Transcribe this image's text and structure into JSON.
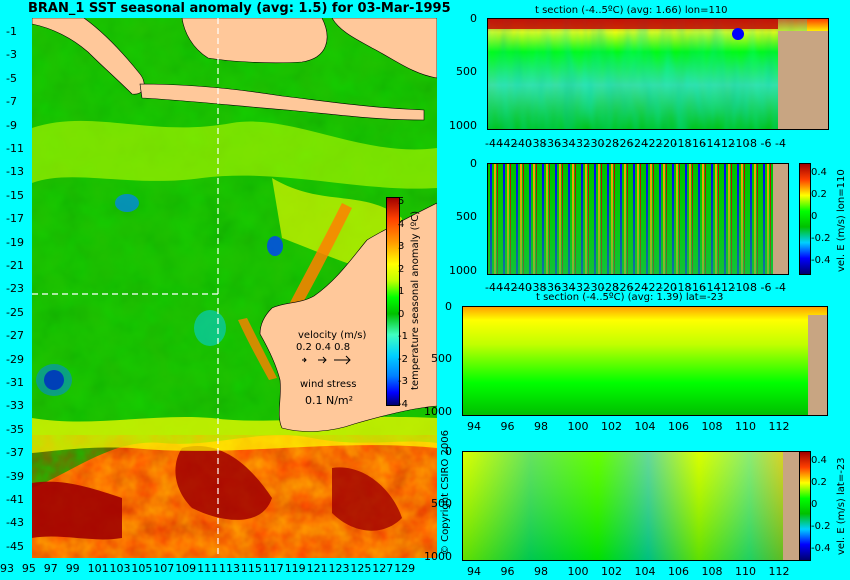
{
  "colors": {
    "background": "#00ffff",
    "land": "#ffc89a",
    "seafloor": "#c8a582",
    "scale": [
      "#00006e",
      "#0000ff",
      "#0080ff",
      "#00d0ff",
      "#40ffc0",
      "#00c000",
      "#00ff00",
      "#c0ff00",
      "#ffff00",
      "#ffa000",
      "#ff4000",
      "#a00000"
    ]
  },
  "map": {
    "title": "BRAN_1  SST seasonal anomaly  (avg: 1.5)  for 03-Mar-1995",
    "lat_labels": [
      "-1",
      "-3",
      "-5",
      "-7",
      "-9",
      "-11",
      "-13",
      "-15",
      "-17",
      "-19",
      "-21",
      "-23",
      "-25",
      "-27",
      "-29",
      "-31",
      "-33",
      "-35",
      "-37",
      "-39",
      "-41",
      "-43",
      "-45"
    ],
    "lon_labels": [
      "93",
      "95",
      "97",
      "99",
      "101",
      "103",
      "105",
      "107",
      "109",
      "111",
      "113",
      "115",
      "117",
      "119",
      "121",
      "123",
      "125",
      "127",
      "129"
    ],
    "colorbar_label": "temperature seasonal anomaly (ºC)",
    "colorbar_ticks": [
      "5",
      "4",
      "3",
      "2",
      "1",
      "0",
      "-1",
      "-2",
      "-3",
      "-4"
    ],
    "velocity_title": "velocity (m/s)",
    "velocity_values": "0.2 0.4 0.8",
    "wind_title": "wind stress",
    "wind_value": "0.1 N/m²",
    "copyright": "© Copyright CSIRO 2006"
  },
  "sections": {
    "top_lon_title": "t section (-4..5ºC)  (avg: 1.66) lon=110",
    "bottom_lat_title": "t section (-4..5ºC)  (avg: 1.39) lat=-23",
    "depth_ticks": [
      "0",
      "500",
      "1000"
    ],
    "lat_ticks": [
      "-44",
      "-42",
      "-40",
      "-38",
      "-36",
      "-34",
      "-32",
      "-30",
      "-28",
      "-26",
      "-24",
      "-22",
      "-20",
      "-18",
      "-16",
      "-14",
      "-12",
      "-10",
      "-8",
      "-6",
      "-4"
    ],
    "lon_ticks": [
      "94",
      "96",
      "98",
      "100",
      "102",
      "104",
      "106",
      "108",
      "110",
      "112"
    ],
    "vel_label_lon": "vel. E (m/s) lon=110",
    "vel_label_lat": "vel. E (m/s) lat=-23",
    "vel_ticks": [
      "0.4",
      "0.2",
      "0",
      "-0.2",
      "-0.4"
    ]
  },
  "chart_data": [
    {
      "type": "heatmap",
      "title": "BRAN_1  SST seasonal anomaly  (avg: 1.5)  for 03-Mar-1995",
      "xlim": [
        93,
        130
      ],
      "ylim": [
        -45,
        0
      ],
      "zlim": [
        -4,
        5
      ],
      "zlabel": "temperature seasonal anomaly (ºC)"
    },
    {
      "type": "heatmap",
      "title": "t section (-4..5ºC)  (avg: 1.66) lon=110",
      "xlim": [
        -45,
        -3
      ],
      "ylim": [
        1050,
        0
      ],
      "zlim": [
        -4,
        5
      ]
    },
    {
      "type": "heatmap",
      "title": "",
      "xlim": [
        -45,
        -3
      ],
      "ylim": [
        1050,
        0
      ],
      "zlim": [
        -0.4,
        0.4
      ],
      "zlabel": "vel. E (m/s) lon=110"
    },
    {
      "type": "heatmap",
      "title": "t section (-4..5ºC)  (avg: 1.39) lat=-23",
      "xlim": [
        93,
        114
      ],
      "ylim": [
        1050,
        0
      ],
      "zlim": [
        -4,
        5
      ]
    },
    {
      "type": "heatmap",
      "title": "",
      "xlim": [
        93,
        114
      ],
      "ylim": [
        1050,
        0
      ],
      "zlim": [
        -0.4,
        0.4
      ],
      "zlabel": "vel. E (m/s) lat=-23"
    }
  ]
}
